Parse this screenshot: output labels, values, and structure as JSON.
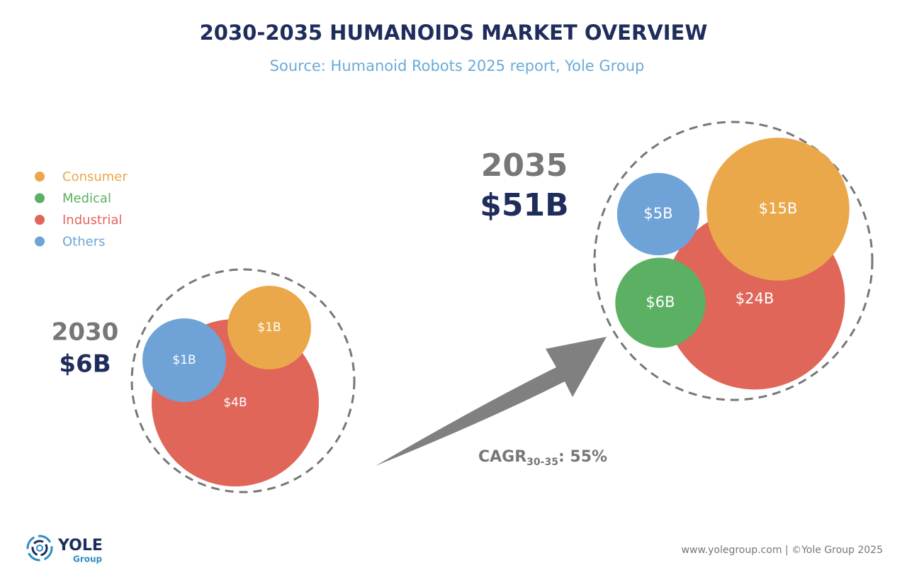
{
  "chart_data": {
    "type": "bubble",
    "title": "2030-2035 HUMANOIDS MARKET OVERVIEW",
    "subtitle": "Source: Humanoid Robots 2025 report, Yole Group",
    "categories": [
      "2030",
      "2035"
    ],
    "totals": [
      6,
      51
    ],
    "total_labels": [
      "$6B",
      "$51B"
    ],
    "series": [
      {
        "name": "Consumer",
        "color": "#eaa84a",
        "values": [
          1,
          15
        ],
        "value_labels": [
          "$1B",
          "$15B"
        ]
      },
      {
        "name": "Medical",
        "color": "#5cb063",
        "values": [
          null,
          6
        ],
        "value_labels": [
          null,
          "$6B"
        ]
      },
      {
        "name": "Industrial",
        "color": "#e0665a",
        "values": [
          4,
          24
        ],
        "value_labels": [
          "$4B",
          "$24B"
        ]
      },
      {
        "name": "Others",
        "color": "#6fa3d8",
        "values": [
          1,
          5
        ],
        "value_labels": [
          "$1B",
          "$5B"
        ]
      }
    ],
    "cagr": {
      "label": "CAGR",
      "period": "30-35",
      "text": ": 55%"
    }
  },
  "logo": {
    "name": "YOLE",
    "sub": "Group"
  },
  "footer": "www.yolegroup.com | ©Yole Group 2025"
}
